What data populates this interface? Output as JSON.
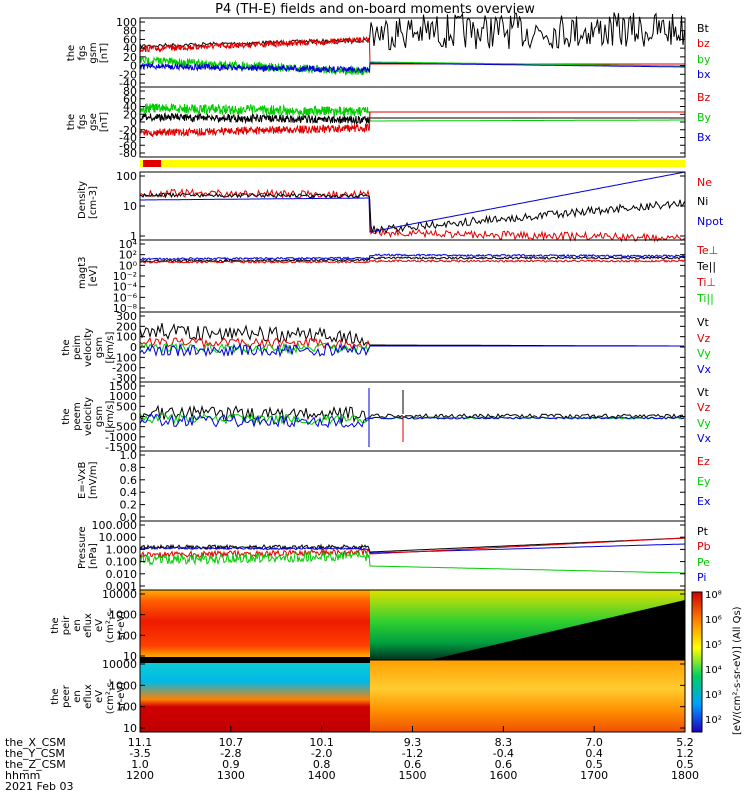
{
  "title": "P4 (TH-E) fields and on-board moments overview",
  "colors": {
    "black": "#000000",
    "red": "#e00000",
    "green": "#00cc00",
    "blue": "#0000d8",
    "yellow": "#ffff00"
  },
  "panels": [
    {
      "id": "fgs-gsm",
      "ylabel": [
        "the",
        "fgs",
        "gsm",
        "[nT]"
      ],
      "yticks": [
        "100",
        "80",
        "60",
        "40",
        "20",
        "0",
        "-20",
        "-40"
      ],
      "legend": [
        {
          "text": "Bt",
          "color": "black"
        },
        {
          "text": "bz",
          "color": "red"
        },
        {
          "text": "by",
          "color": "green"
        },
        {
          "text": "bx",
          "color": "blue"
        }
      ]
    },
    {
      "id": "fgs-gse",
      "ylabel": [
        "the",
        "fgs",
        "gse",
        "[nT]"
      ],
      "yticks": [
        "80",
        "60",
        "40",
        "20",
        "0",
        "-20",
        "-40",
        "-60",
        "-80"
      ],
      "legend": [
        {
          "text": "Bz",
          "color": "red"
        },
        {
          "text": "By",
          "color": "green"
        },
        {
          "text": "Bx",
          "color": "blue"
        }
      ]
    },
    {
      "id": "density",
      "ylabel": [
        "Density",
        "[cm-3]"
      ],
      "yticks": [
        "100",
        "10",
        "1"
      ],
      "legend": [
        {
          "text": "Ne",
          "color": "red"
        },
        {
          "text": "Ni",
          "color": "black"
        },
        {
          "text": "Npot",
          "color": "blue"
        }
      ]
    },
    {
      "id": "temperature",
      "ylabel": [
        "magt3",
        "[eV]"
      ],
      "yticks": [
        "10⁴",
        "10²",
        "10⁰",
        "10⁻²",
        "10⁻⁴",
        "10⁻⁶",
        "10⁻⁸"
      ],
      "legend": [
        {
          "text": "Te⊥",
          "color": "red"
        },
        {
          "text": "Te||",
          "color": "black"
        },
        {
          "text": "Ti⊥",
          "color": "red"
        },
        {
          "text": "Ti||",
          "color": "green"
        }
      ]
    },
    {
      "id": "ion-velocity",
      "ylabel": [
        "the",
        "peim",
        "velocity",
        "gsm",
        "[km/s]"
      ],
      "yticks": [
        "300",
        "200",
        "100",
        "0",
        "-100",
        "-200",
        "-300"
      ],
      "legend": [
        {
          "text": "Vt",
          "color": "black"
        },
        {
          "text": "Vz",
          "color": "red"
        },
        {
          "text": "Vy",
          "color": "green"
        },
        {
          "text": "Vx",
          "color": "blue"
        }
      ]
    },
    {
      "id": "electron-velocity",
      "ylabel": [
        "the",
        "peem",
        "velocity",
        "gsm",
        "[km/s]"
      ],
      "yticks": [
        "1500",
        "1000",
        "500",
        "0",
        "-500",
        "-1000",
        "-1500"
      ],
      "legend": [
        {
          "text": "Vt",
          "color": "black"
        },
        {
          "text": "Vz",
          "color": "red"
        },
        {
          "text": "Vy",
          "color": "green"
        },
        {
          "text": "Vx",
          "color": "blue"
        }
      ]
    },
    {
      "id": "efield",
      "ylabel": [
        "E=-VxB",
        "[mV/m]"
      ],
      "yticks": [
        "1.0",
        "0.8",
        "0.6",
        "0.4",
        "0.2",
        "0.0"
      ],
      "legend": [
        {
          "text": "Ez",
          "color": "red"
        },
        {
          "text": "Ey",
          "color": "green"
        },
        {
          "text": "Ex",
          "color": "blue"
        }
      ]
    },
    {
      "id": "pressure",
      "ylabel": [
        "Pressure",
        "[nPa]"
      ],
      "yticks": [
        "100.000",
        "10.000",
        "1.000",
        "0.100",
        "0.010",
        "0.001"
      ],
      "legend": [
        {
          "text": "Pt",
          "color": "black"
        },
        {
          "text": "Pb",
          "color": "red"
        },
        {
          "text": "Pe",
          "color": "green"
        },
        {
          "text": "Pi",
          "color": "blue"
        }
      ]
    },
    {
      "id": "ion-spectrogram",
      "ylabel": [
        "the",
        "peir",
        "en",
        "eflux",
        "eV",
        "(cm²-s-",
        "sr-eV)"
      ],
      "yticks": [
        "10000",
        "1000",
        "100",
        "10"
      ],
      "legend": []
    },
    {
      "id": "electron-spectrogram",
      "ylabel": [
        "the",
        "peer",
        "en",
        "eflux",
        "eV",
        "(cm²-s-",
        "sr-eV)"
      ],
      "yticks": [
        "10000",
        "1000",
        "100",
        "10"
      ],
      "legend": []
    }
  ],
  "colorbar": {
    "label": "[eV/(cm²-s-sr-eV)] (All Qs)",
    "ticks": [
      "10⁸",
      "10⁶",
      "10⁵",
      "10⁴",
      "10³",
      "10²"
    ]
  },
  "footer": {
    "rows": [
      {
        "label": "the_X_CSM",
        "values": [
          "11.1",
          "10.7",
          "10.1",
          "9.3",
          "8.3",
          "7.0",
          "5.2"
        ]
      },
      {
        "label": "the_Y_CSM",
        "values": [
          "-3.5",
          "-2.8",
          "-2.0",
          "-1.2",
          "-0.4",
          "0.4",
          "1.2"
        ]
      },
      {
        "label": "the_Z_CSM",
        "values": [
          "1.0",
          "0.9",
          "0.8",
          "0.6",
          "0.6",
          "0.5",
          "0.5"
        ]
      },
      {
        "label": "hhmm",
        "values": [
          "1200",
          "1300",
          "1400",
          "1500",
          "1600",
          "1700",
          "1800"
        ]
      }
    ],
    "date": "2021 Feb 03"
  },
  "chart_data": {
    "type": "line",
    "x_label": "hhmm",
    "x_ticks": [
      "1200",
      "1300",
      "1400",
      "1500",
      "1600",
      "1700",
      "1800"
    ],
    "boundary_crossing_time": "1446",
    "panels": [
      {
        "name": "fgs gsm (nT)",
        "ylim": [
          -40,
          100
        ],
        "series": [
          {
            "name": "Bt",
            "values": [
              {
                "t": "1200",
                "v": 30
              },
              {
                "t": "1300",
                "v": 40
              },
              {
                "t": "1400",
                "v": 50
              },
              {
                "t": "1446",
                "v": 60
              },
              {
                "t": "1500",
                "v": 80
              },
              {
                "t": "1600",
                "v": 85
              },
              {
                "t": "1700",
                "v": 95
              },
              {
                "t": "1800",
                "v": 105
              }
            ]
          },
          {
            "name": "bz",
            "values": [
              {
                "t": "1200",
                "v": 20
              },
              {
                "t": "1300",
                "v": 15
              },
              {
                "t": "1400",
                "v": 30
              },
              {
                "t": "1446",
                "v": 0
              },
              {
                "t": "1600",
                "v": 0
              },
              {
                "t": "1800",
                "v": 0
              }
            ]
          },
          {
            "name": "by",
            "values": [
              {
                "t": "1200",
                "v": 5
              },
              {
                "t": "1300",
                "v": 5
              },
              {
                "t": "1400",
                "v": -25
              },
              {
                "t": "1446",
                "v": 5
              },
              {
                "t": "1600",
                "v": 0
              },
              {
                "t": "1800",
                "v": -5
              }
            ]
          },
          {
            "name": "bx",
            "values": [
              {
                "t": "1200",
                "v": -5
              },
              {
                "t": "1300",
                "v": -10
              },
              {
                "t": "1400",
                "v": -10
              },
              {
                "t": "1446",
                "v": 0
              },
              {
                "t": "1600",
                "v": 0
              },
              {
                "t": "1800",
                "v": -10
              }
            ]
          }
        ]
      },
      {
        "name": "fgs gse (nT)",
        "ylim": [
          -80,
          80
        ],
        "series": [
          {
            "name": "Bz",
            "values": [
              {
                "t": "1200",
                "v": -25
              },
              {
                "t": "1400",
                "v": -20
              },
              {
                "t": "1446",
                "v": 10
              },
              {
                "t": "1800",
                "v": 15
              }
            ]
          },
          {
            "name": "By",
            "values": [
              {
                "t": "1200",
                "v": 20
              },
              {
                "t": "1400",
                "v": 15
              },
              {
                "t": "1446",
                "v": 0
              },
              {
                "t": "1800",
                "v": 0
              }
            ]
          },
          {
            "name": "Bx",
            "values": [
              {
                "t": "1200",
                "v": 0
              },
              {
                "t": "1446",
                "v": 0
              },
              {
                "t": "1800",
                "v": 0
              }
            ]
          }
        ]
      },
      {
        "name": "Density (cm-3)",
        "ylim": [
          0.5,
          200
        ],
        "scale": "log",
        "series": [
          {
            "name": "Ne",
            "values": [
              {
                "t": "1200",
                "v": 30
              },
              {
                "t": "1446",
                "v": 30
              },
              {
                "t": "1450",
                "v": 0.8
              },
              {
                "t": "1700",
                "v": 0.5
              },
              {
                "t": "1800",
                "v": 0.3
              }
            ]
          },
          {
            "name": "Ni",
            "values": [
              {
                "t": "1200",
                "v": 25
              },
              {
                "t": "1446",
                "v": 25
              },
              {
                "t": "1450",
                "v": 0.8
              },
              {
                "t": "1700",
                "v": 8
              },
              {
                "t": "1800",
                "v": 15
              }
            ]
          },
          {
            "name": "Npot",
            "values": [
              {
                "t": "1200",
                "v": 18
              },
              {
                "t": "1446",
                "v": 20
              },
              {
                "t": "1450",
                "v": 0.9
              },
              {
                "t": "1700",
                "v": 15
              },
              {
                "t": "1800",
                "v": 200
              }
            ]
          }
        ]
      },
      {
        "name": "Pressure (nPa)",
        "ylim": [
          0.001,
          100
        ],
        "scale": "log",
        "series": [
          {
            "name": "Pt",
            "values": [
              {
                "t": "1200",
                "v": 2
              },
              {
                "t": "1446",
                "v": 2
              },
              {
                "t": "1800",
                "v": 10
              }
            ]
          },
          {
            "name": "Pb",
            "values": [
              {
                "t": "1200",
                "v": 0.8
              },
              {
                "t": "1446",
                "v": 1.5
              },
              {
                "t": "1800",
                "v": 10
              }
            ]
          },
          {
            "name": "Pe",
            "values": [
              {
                "t": "1200",
                "v": 0.5
              },
              {
                "t": "1446",
                "v": 0.3
              },
              {
                "t": "1800",
                "v": 0.05
              }
            ]
          },
          {
            "name": "Pi",
            "values": [
              {
                "t": "1200",
                "v": 1.5
              },
              {
                "t": "1446",
                "v": 1
              },
              {
                "t": "1800",
                "v": 1
              }
            ]
          }
        ]
      }
    ]
  }
}
